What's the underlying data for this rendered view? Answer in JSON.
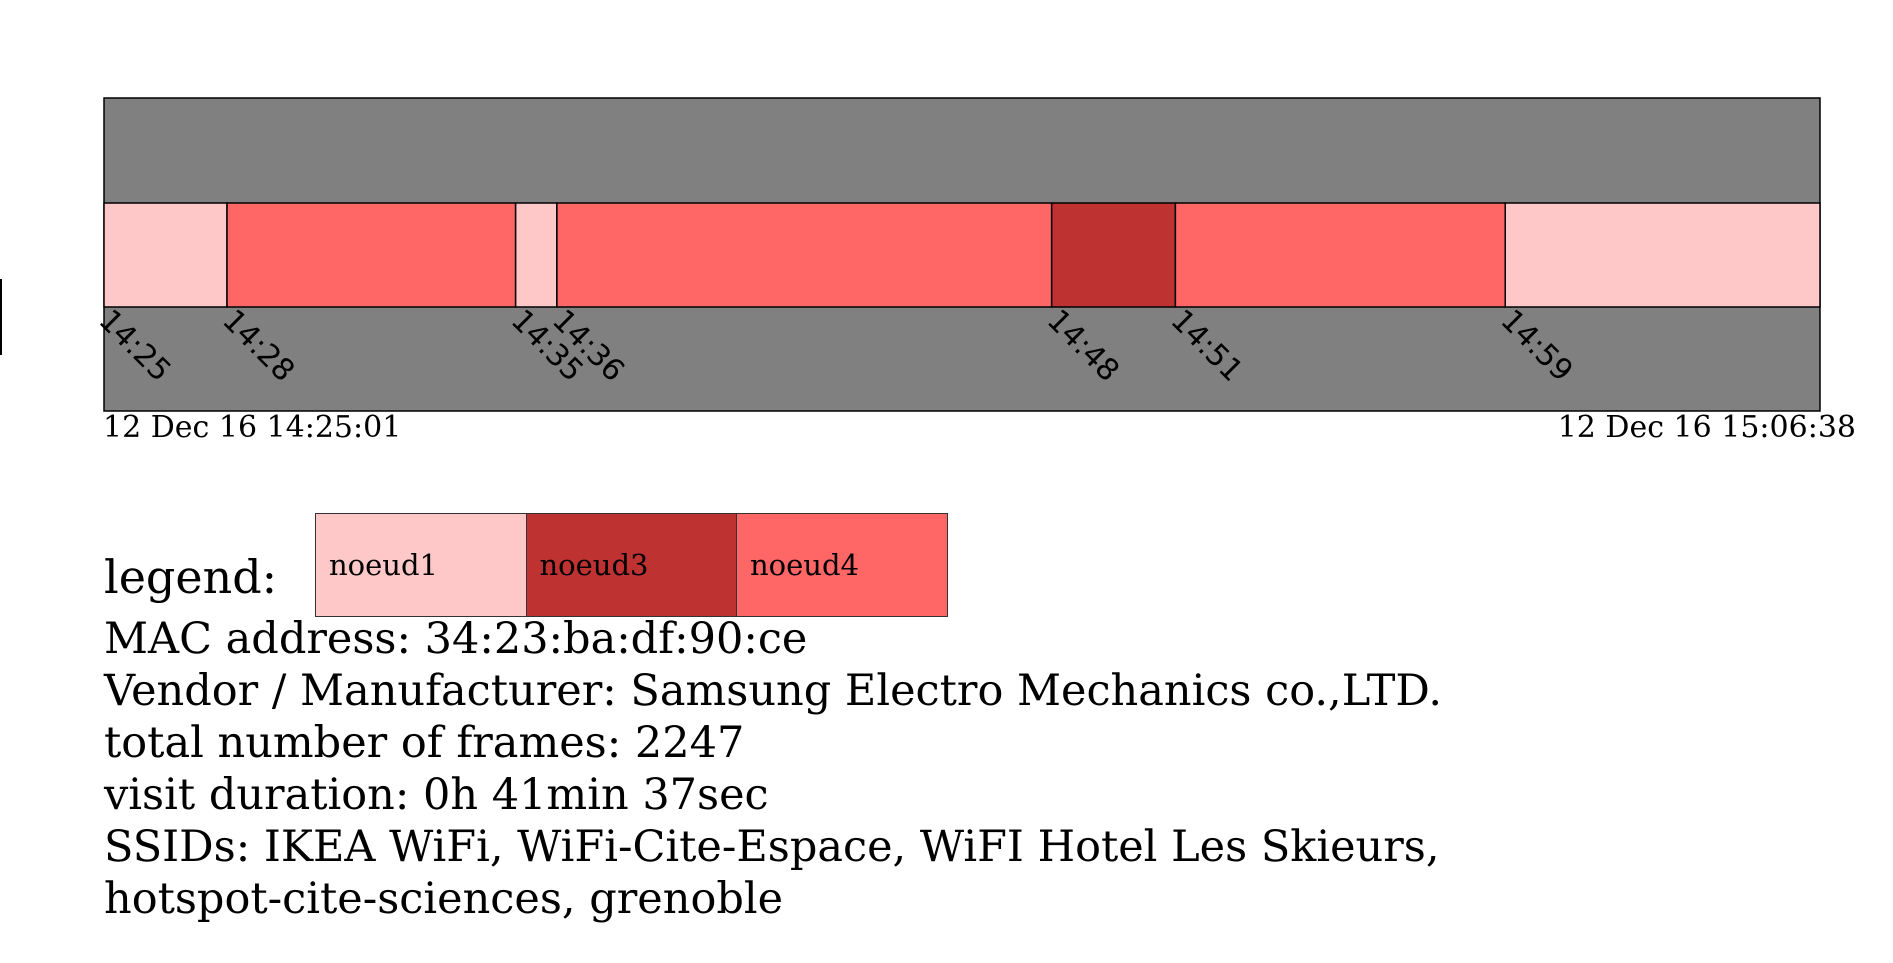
{
  "chart_data": {
    "type": "timeline",
    "start": "12 Dec 16 14:25:01",
    "end": "12 Dec 16 15:06:38",
    "segments": [
      {
        "node": "noeud1",
        "start": "14:25:01",
        "end": "14:28"
      },
      {
        "node": "noeud4",
        "start": "14:28",
        "end": "14:35"
      },
      {
        "node": "noeud1",
        "start": "14:35",
        "end": "14:36"
      },
      {
        "node": "noeud4",
        "start": "14:36",
        "end": "14:48"
      },
      {
        "node": "noeud3",
        "start": "14:48",
        "end": "14:51"
      },
      {
        "node": "noeud4",
        "start": "14:51",
        "end": "14:59"
      },
      {
        "node": "noeud1",
        "start": "14:59",
        "end": "15:06:38"
      }
    ],
    "tick_labels": [
      "14:25",
      "14:28",
      "14:35",
      "14:36",
      "14:48",
      "14:51",
      "14:59"
    ],
    "colors": {
      "background": "#808080",
      "noeud1": "#ffc8c8",
      "noeud3": "#be3232",
      "noeud4": "#ff6666"
    }
  },
  "legend": {
    "label": "legend:",
    "items": [
      {
        "name": "noeud1",
        "color": "#ffc8c8"
      },
      {
        "name": "noeud3",
        "color": "#be3232"
      },
      {
        "name": "noeud4",
        "color": "#ff6666"
      }
    ]
  },
  "info": {
    "mac": "MAC address: 34:23:ba:df:90:ce",
    "vendor": "Vendor / Manufacturer: Samsung Electro Mechanics co.,LTD.",
    "frames": "total number of frames: 2247",
    "duration": "visit duration: 0h 41min 37sec",
    "ssids_line1": "SSIDs: IKEA WiFi, WiFi-Cite-Espace, WiFI Hotel Les Skieurs,",
    "ssids_line2": "hotspot-cite-sciences, grenoble"
  }
}
